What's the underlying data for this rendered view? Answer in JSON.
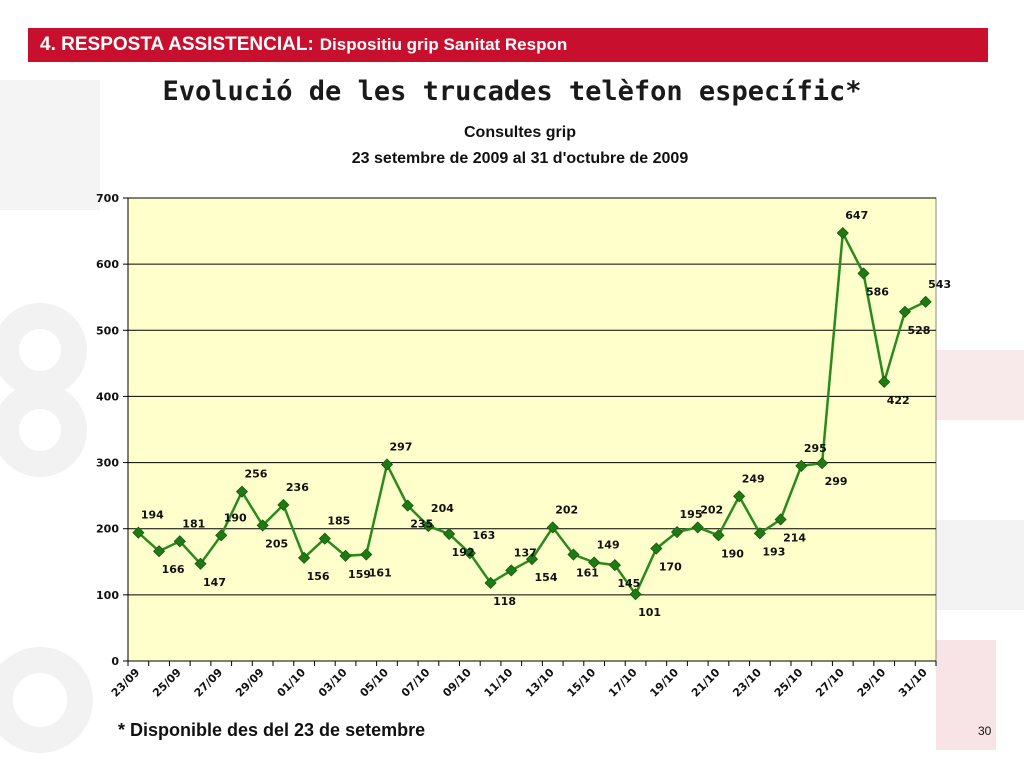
{
  "header": {
    "section": "4. RESPOSTA ASSISTENCIAL:",
    "subtitle": "Dispositiu grip Sanitat Respon"
  },
  "slide_title": "Evolució de les trucades telèfon específic*",
  "footnote": "* Disponible des del 23 de setembre",
  "page_number": "30",
  "colors": {
    "header_bar": "#c8102e",
    "plot_background": "#ffffcc",
    "series_line": "#2a8a1e",
    "marker": "#1f7a14"
  },
  "chart_data": {
    "type": "line",
    "title": "Consultes grip",
    "subtitle": "23 setembre de 2009 al 31 d'octubre de 2009",
    "xlabel": "",
    "ylabel": "",
    "ylim": [
      0,
      700
    ],
    "yticks": [
      0,
      100,
      200,
      300,
      400,
      500,
      600,
      700
    ],
    "grid": true,
    "legend": "none",
    "x": [
      "23/09",
      "24/09",
      "25/09",
      "26/09",
      "27/09",
      "28/09",
      "29/09",
      "30/09",
      "01/10",
      "02/10",
      "03/10",
      "04/10",
      "05/10",
      "06/10",
      "07/10",
      "08/10",
      "09/10",
      "10/10",
      "11/10",
      "12/10",
      "13/10",
      "14/10",
      "15/10",
      "16/10",
      "17/10",
      "18/10",
      "19/10",
      "20/10",
      "21/10",
      "22/10",
      "23/10",
      "24/10",
      "25/10",
      "26/10",
      "27/10",
      "28/10",
      "29/10",
      "30/10",
      "31/10"
    ],
    "x_tick_labels": [
      "23/09",
      "25/09",
      "27/09",
      "29/09",
      "01/10",
      "03/10",
      "05/10",
      "07/10",
      "09/10",
      "11/10",
      "13/10",
      "15/10",
      "17/10",
      "19/10",
      "21/10",
      "23/10",
      "25/10",
      "27/10",
      "29/10",
      "31/10"
    ],
    "series": [
      {
        "values": [
          194,
          166,
          181,
          147,
          190,
          256,
          205,
          236,
          156,
          185,
          159,
          161,
          297,
          235,
          204,
          192,
          163,
          118,
          137,
          154,
          202,
          161,
          149,
          145,
          101,
          170,
          195,
          202,
          190,
          249,
          193,
          214,
          295,
          299,
          647,
          586,
          422,
          528,
          543
        ]
      }
    ]
  }
}
